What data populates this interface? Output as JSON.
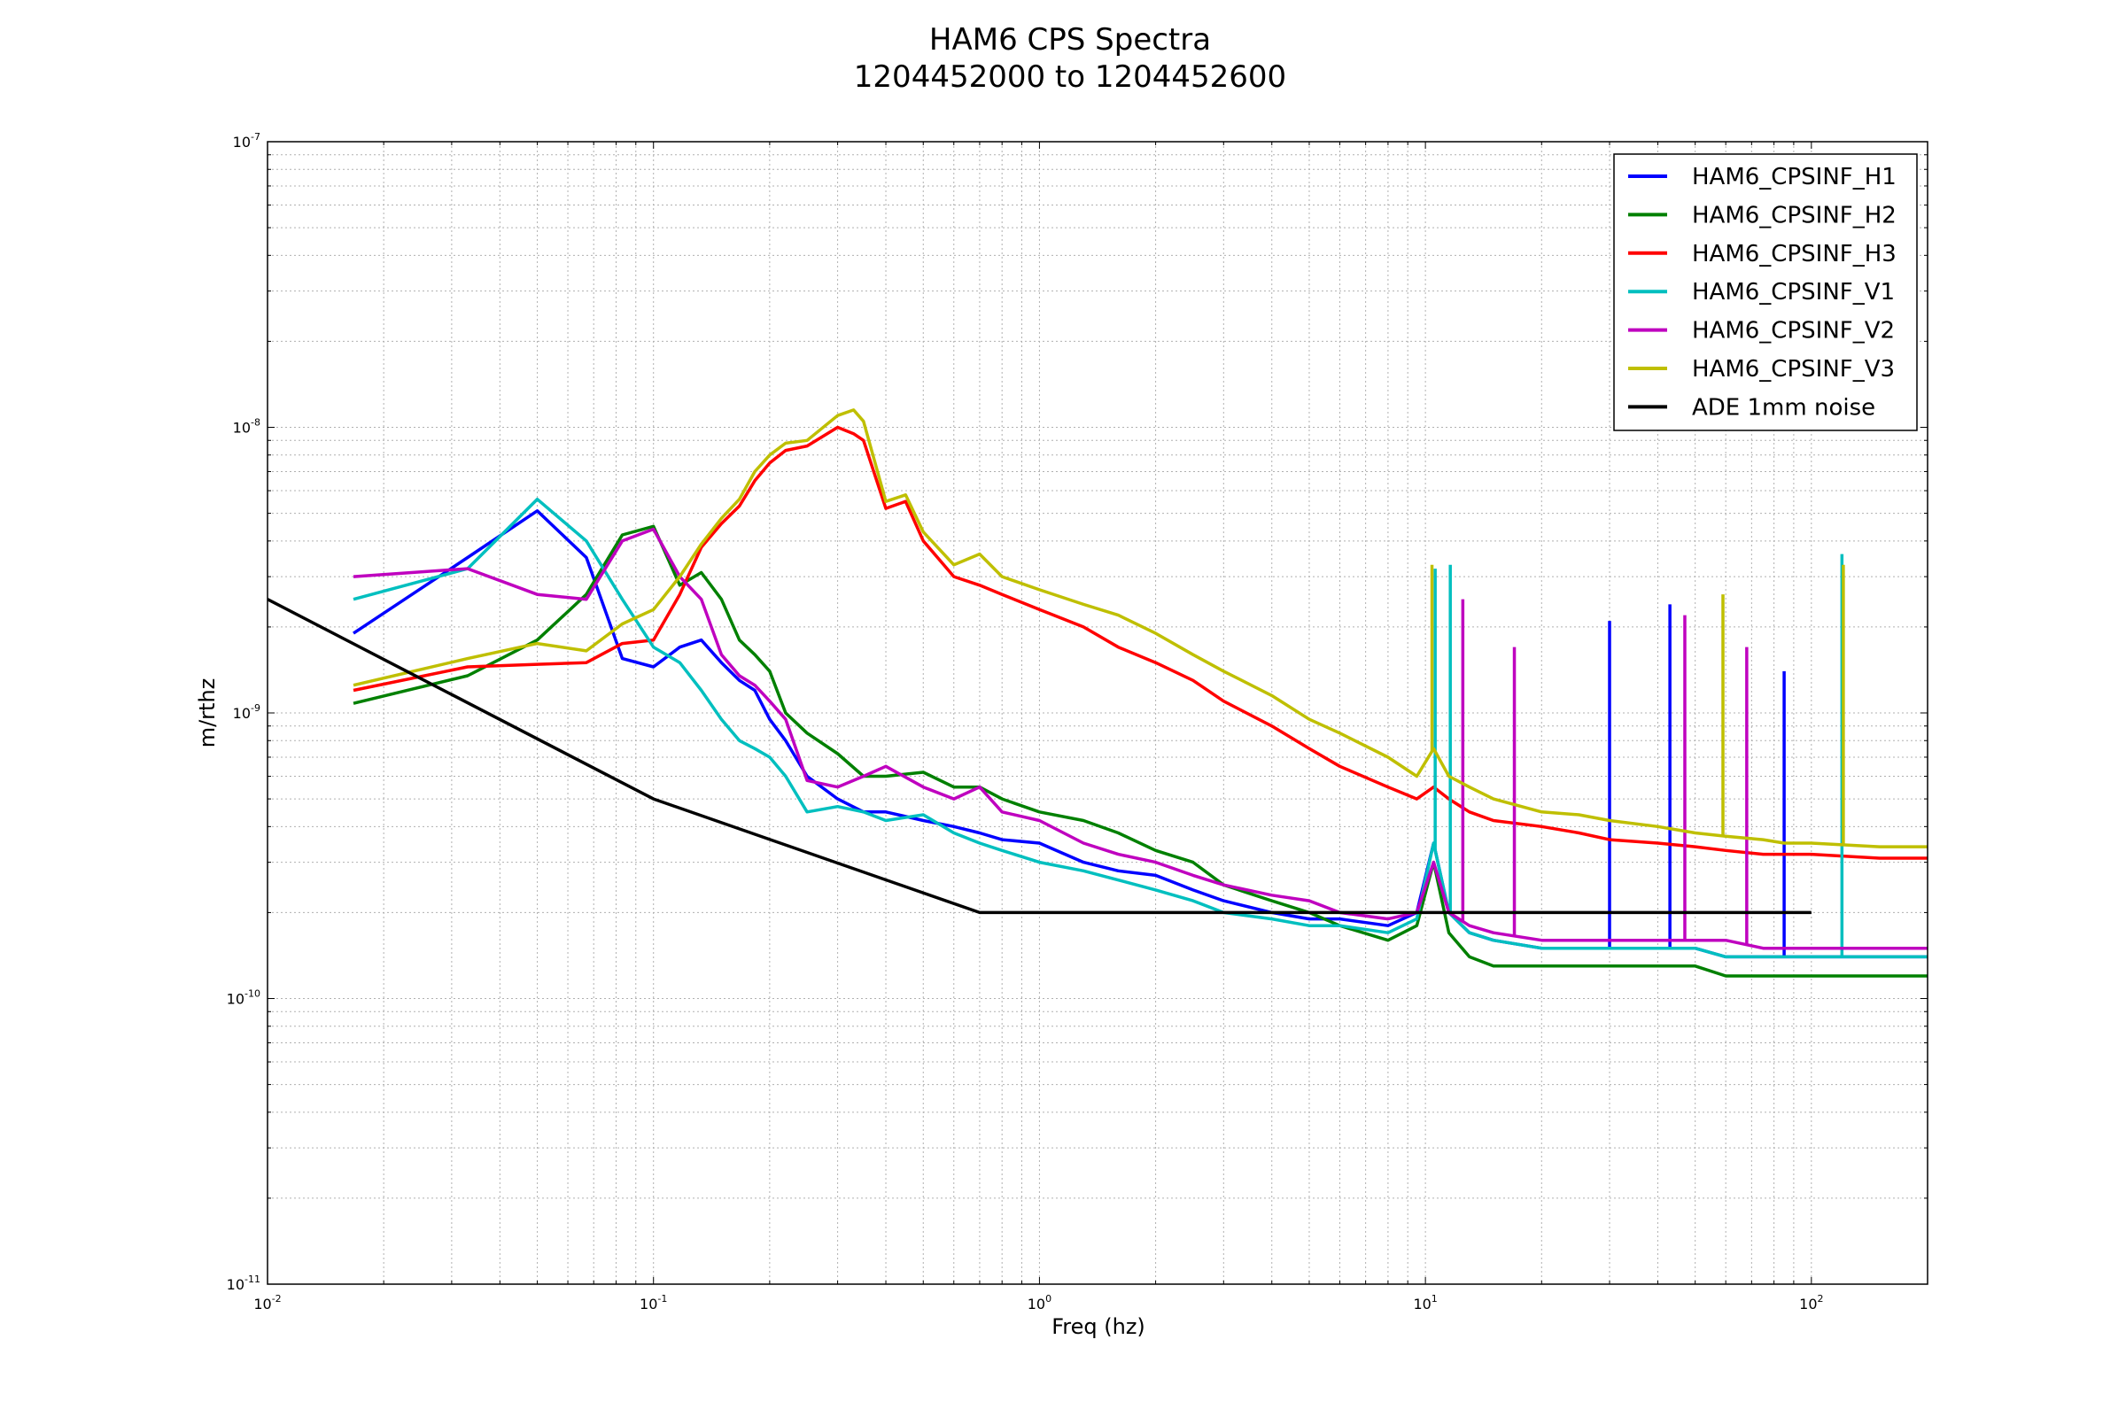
{
  "chart_data": {
    "type": "line",
    "title": "HAM6 CPS Spectra",
    "subtitle": "1204452000 to 1204452600",
    "xlabel": "Freq (hz)",
    "ylabel": "m/rthz",
    "xscale": "log",
    "yscale": "log",
    "xlim": [
      0.01,
      200
    ],
    "ylim": [
      1e-11,
      1e-07
    ],
    "grid": "major and minor, dotted",
    "legend_position": "top-right",
    "x_tick_labels": [
      {
        "base": "10",
        "exp": "-2"
      },
      {
        "base": "10",
        "exp": "-1"
      },
      {
        "base": "10",
        "exp": "0"
      },
      {
        "base": "10",
        "exp": "1"
      },
      {
        "base": "10",
        "exp": "2"
      }
    ],
    "y_tick_labels": [
      {
        "base": "10",
        "exp": "-7"
      },
      {
        "base": "10",
        "exp": "-8"
      },
      {
        "base": "10",
        "exp": "-9"
      },
      {
        "base": "10",
        "exp": "-10"
      },
      {
        "base": "10",
        "exp": "-11"
      }
    ],
    "series": [
      {
        "name": "HAM6_CPSINF_H1",
        "color": "#0000ff",
        "x": [
          0.0167,
          0.033,
          0.05,
          0.067,
          0.083,
          0.1,
          0.117,
          0.133,
          0.15,
          0.167,
          0.183,
          0.2,
          0.22,
          0.25,
          0.3,
          0.35,
          0.4,
          0.5,
          0.6,
          0.7,
          0.8,
          1.0,
          1.3,
          1.6,
          2.0,
          2.5,
          3.0,
          4.0,
          5.0,
          6.0,
          8.0,
          9.5,
          10.5,
          11.5,
          13.0,
          15.0,
          20.0,
          25.0,
          30.0,
          40.0,
          50.0,
          60.0,
          75.0,
          85.0,
          100.0,
          150.0,
          200.0
        ],
        "y": [
          1.9e-09,
          3.5e-09,
          5.1e-09,
          3.5e-09,
          1.55e-09,
          1.45e-09,
          1.7e-09,
          1.8e-09,
          1.5e-09,
          1.3e-09,
          1.2e-09,
          9.5e-10,
          8e-10,
          6e-10,
          5e-10,
          4.5e-10,
          4.5e-10,
          4.2e-10,
          4e-10,
          3.8e-10,
          3.6e-10,
          3.5e-10,
          3e-10,
          2.8e-10,
          2.7e-10,
          2.4e-10,
          2.2e-10,
          2e-10,
          1.9e-10,
          1.9e-10,
          1.8e-10,
          2e-10,
          3.5e-10,
          2e-10,
          1.7e-10,
          1.6e-10,
          1.5e-10,
          1.5e-10,
          1.5e-10,
          1.5e-10,
          1.5e-10,
          1.4e-10,
          1.4e-10,
          1.4e-10,
          1.4e-10,
          1.4e-10,
          1.4e-10
        ],
        "spikes": [
          {
            "x": 30.0,
            "y": 2.1e-09
          },
          {
            "x": 43.0,
            "y": 2.4e-09
          },
          {
            "x": 85.0,
            "y": 1.4e-09
          }
        ]
      },
      {
        "name": "HAM6_CPSINF_H2",
        "color": "#008000",
        "x": [
          0.0167,
          0.033,
          0.05,
          0.067,
          0.083,
          0.1,
          0.117,
          0.133,
          0.15,
          0.167,
          0.183,
          0.2,
          0.22,
          0.25,
          0.3,
          0.35,
          0.4,
          0.5,
          0.6,
          0.7,
          0.8,
          1.0,
          1.3,
          1.6,
          2.0,
          2.5,
          3.0,
          4.0,
          5.0,
          6.0,
          8.0,
          9.5,
          10.5,
          11.5,
          13.0,
          15.0,
          20.0,
          25.0,
          30.0,
          40.0,
          50.0,
          60.0,
          75.0,
          85.0,
          100.0,
          150.0,
          200.0
        ],
        "y": [
          1.08e-09,
          1.35e-09,
          1.8e-09,
          2.6e-09,
          4.2e-09,
          4.5e-09,
          2.8e-09,
          3.1e-09,
          2.5e-09,
          1.8e-09,
          1.6e-09,
          1.4e-09,
          1e-09,
          8.5e-10,
          7.2e-10,
          6e-10,
          6e-10,
          6.2e-10,
          5.5e-10,
          5.5e-10,
          5e-10,
          4.5e-10,
          4.2e-10,
          3.8e-10,
          3.3e-10,
          3e-10,
          2.5e-10,
          2.2e-10,
          2e-10,
          1.8e-10,
          1.6e-10,
          1.8e-10,
          3e-10,
          1.7e-10,
          1.4e-10,
          1.3e-10,
          1.3e-10,
          1.3e-10,
          1.3e-10,
          1.3e-10,
          1.3e-10,
          1.2e-10,
          1.2e-10,
          1.2e-10,
          1.2e-10,
          1.2e-10,
          1.2e-10
        ],
        "spikes": []
      },
      {
        "name": "HAM6_CPSINF_H3",
        "color": "#ff0000",
        "x": [
          0.0167,
          0.033,
          0.05,
          0.067,
          0.083,
          0.1,
          0.117,
          0.133,
          0.15,
          0.167,
          0.183,
          0.2,
          0.22,
          0.25,
          0.3,
          0.33,
          0.35,
          0.4,
          0.45,
          0.5,
          0.6,
          0.7,
          0.8,
          1.0,
          1.3,
          1.6,
          2.0,
          2.5,
          3.0,
          4.0,
          5.0,
          6.0,
          8.0,
          9.5,
          10.5,
          11.5,
          13.0,
          15.0,
          20.0,
          25.0,
          30.0,
          40.0,
          50.0,
          60.0,
          75.0,
          85.0,
          100.0,
          150.0,
          200.0
        ],
        "y": [
          1.2e-09,
          1.45e-09,
          1.48e-09,
          1.5e-09,
          1.75e-09,
          1.8e-09,
          2.6e-09,
          3.8e-09,
          4.6e-09,
          5.3e-09,
          6.5e-09,
          7.5e-09,
          8.3e-09,
          8.6e-09,
          1e-08,
          9.5e-09,
          9e-09,
          5.2e-09,
          5.5e-09,
          4e-09,
          3e-09,
          2.8e-09,
          2.6e-09,
          2.3e-09,
          2e-09,
          1.7e-09,
          1.5e-09,
          1.3e-09,
          1.1e-09,
          9e-10,
          7.5e-10,
          6.5e-10,
          5.5e-10,
          5e-10,
          5.5e-10,
          5e-10,
          4.5e-10,
          4.2e-10,
          4e-10,
          3.8e-10,
          3.6e-10,
          3.5e-10,
          3.4e-10,
          3.3e-10,
          3.2e-10,
          3.2e-10,
          3.2e-10,
          3.1e-10,
          3.1e-10
        ],
        "spikes": []
      },
      {
        "name": "HAM6_CPSINF_V1",
        "color": "#00bfbf",
        "x": [
          0.0167,
          0.033,
          0.05,
          0.067,
          0.083,
          0.1,
          0.117,
          0.133,
          0.15,
          0.167,
          0.183,
          0.2,
          0.22,
          0.25,
          0.3,
          0.35,
          0.4,
          0.5,
          0.6,
          0.7,
          0.8,
          1.0,
          1.3,
          1.6,
          2.0,
          2.5,
          3.0,
          4.0,
          5.0,
          6.0,
          8.0,
          9.5,
          10.5,
          11.5,
          13.0,
          15.0,
          20.0,
          25.0,
          30.0,
          40.0,
          50.0,
          60.0,
          75.0,
          85.0,
          100.0,
          150.0,
          200.0
        ],
        "y": [
          2.5e-09,
          3.2e-09,
          5.6e-09,
          4e-09,
          2.5e-09,
          1.7e-09,
          1.5e-09,
          1.2e-09,
          9.5e-10,
          8e-10,
          7.5e-10,
          7e-10,
          6e-10,
          4.5e-10,
          4.7e-10,
          4.5e-10,
          4.2e-10,
          4.4e-10,
          3.8e-10,
          3.5e-10,
          3.3e-10,
          3e-10,
          2.8e-10,
          2.6e-10,
          2.4e-10,
          2.2e-10,
          2e-10,
          1.9e-10,
          1.8e-10,
          1.8e-10,
          1.7e-10,
          1.9e-10,
          3.5e-10,
          2e-10,
          1.7e-10,
          1.6e-10,
          1.5e-10,
          1.5e-10,
          1.5e-10,
          1.5e-10,
          1.5e-10,
          1.4e-10,
          1.4e-10,
          1.4e-10,
          1.4e-10,
          1.4e-10,
          1.4e-10
        ],
        "spikes": [
          {
            "x": 10.6,
            "y": 3.2e-09
          },
          {
            "x": 11.6,
            "y": 3.3e-09
          },
          {
            "x": 120.0,
            "y": 3.6e-09
          }
        ]
      },
      {
        "name": "HAM6_CPSINF_V2",
        "color": "#bf00bf",
        "x": [
          0.0167,
          0.033,
          0.05,
          0.067,
          0.083,
          0.1,
          0.117,
          0.133,
          0.15,
          0.167,
          0.183,
          0.2,
          0.22,
          0.25,
          0.3,
          0.35,
          0.4,
          0.5,
          0.6,
          0.7,
          0.8,
          1.0,
          1.3,
          1.6,
          2.0,
          2.5,
          3.0,
          4.0,
          5.0,
          6.0,
          8.0,
          9.5,
          10.5,
          11.5,
          13.0,
          15.0,
          20.0,
          25.0,
          30.0,
          40.0,
          50.0,
          60.0,
          75.0,
          85.0,
          100.0,
          150.0,
          200.0
        ],
        "y": [
          3e-09,
          3.2e-09,
          2.6e-09,
          2.5e-09,
          4e-09,
          4.4e-09,
          3e-09,
          2.5e-09,
          1.6e-09,
          1.35e-09,
          1.25e-09,
          1.1e-09,
          9.5e-10,
          5.8e-10,
          5.5e-10,
          6e-10,
          6.5e-10,
          5.5e-10,
          5e-10,
          5.5e-10,
          4.5e-10,
          4.2e-10,
          3.5e-10,
          3.2e-10,
          3e-10,
          2.7e-10,
          2.5e-10,
          2.3e-10,
          2.2e-10,
          2e-10,
          1.9e-10,
          2e-10,
          3e-10,
          2e-10,
          1.8e-10,
          1.7e-10,
          1.6e-10,
          1.6e-10,
          1.6e-10,
          1.6e-10,
          1.6e-10,
          1.6e-10,
          1.5e-10,
          1.5e-10,
          1.5e-10,
          1.5e-10,
          1.5e-10
        ],
        "spikes": [
          {
            "x": 12.5,
            "y": 2.5e-09
          },
          {
            "x": 17.0,
            "y": 1.7e-09
          },
          {
            "x": 47.0,
            "y": 2.2e-09
          },
          {
            "x": 68.0,
            "y": 1.7e-09
          }
        ]
      },
      {
        "name": "HAM6_CPSINF_V3",
        "color": "#bfbf00",
        "x": [
          0.0167,
          0.033,
          0.05,
          0.067,
          0.083,
          0.1,
          0.117,
          0.133,
          0.15,
          0.167,
          0.183,
          0.2,
          0.22,
          0.25,
          0.3,
          0.33,
          0.35,
          0.4,
          0.45,
          0.5,
          0.6,
          0.7,
          0.8,
          1.0,
          1.3,
          1.6,
          2.0,
          2.5,
          3.0,
          4.0,
          5.0,
          6.0,
          8.0,
          9.5,
          10.5,
          11.5,
          13.0,
          15.0,
          20.0,
          25.0,
          30.0,
          40.0,
          50.0,
          60.0,
          75.0,
          85.0,
          100.0,
          150.0,
          200.0
        ],
        "y": [
          1.25e-09,
          1.55e-09,
          1.75e-09,
          1.65e-09,
          2.05e-09,
          2.3e-09,
          3e-09,
          3.9e-09,
          4.8e-09,
          5.6e-09,
          7e-09,
          8e-09,
          8.8e-09,
          9e-09,
          1.1e-08,
          1.15e-08,
          1.05e-08,
          5.5e-09,
          5.8e-09,
          4.3e-09,
          3.3e-09,
          3.6e-09,
          3e-09,
          2.7e-09,
          2.4e-09,
          2.2e-09,
          1.9e-09,
          1.6e-09,
          1.4e-09,
          1.15e-09,
          9.5e-10,
          8.5e-10,
          7e-10,
          6e-10,
          7.5e-10,
          6e-10,
          5.5e-10,
          5e-10,
          4.5e-10,
          4.4e-10,
          4.2e-10,
          4e-10,
          3.8e-10,
          3.7e-10,
          3.6e-10,
          3.5e-10,
          3.5e-10,
          3.4e-10,
          3.4e-10
        ],
        "spikes": [
          {
            "x": 10.4,
            "y": 3.3e-09
          },
          {
            "x": 59.0,
            "y": 2.6e-09
          },
          {
            "x": 121.0,
            "y": 3.3e-09
          }
        ]
      },
      {
        "name": "ADE 1mm noise",
        "color": "#000000",
        "x": [
          0.01,
          0.1,
          0.7,
          100.0
        ],
        "y": [
          2.5e-09,
          5e-10,
          2e-10,
          2e-10
        ],
        "spikes": []
      }
    ]
  }
}
